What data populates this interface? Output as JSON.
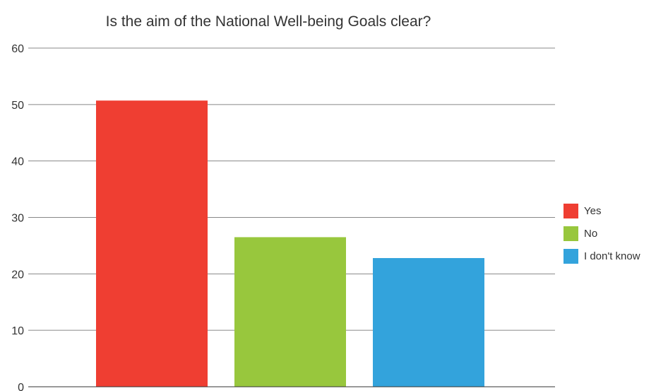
{
  "chart_data": {
    "type": "bar",
    "title": "Is the aim of the National Well-being Goals clear?",
    "xlabel": "",
    "ylabel": "",
    "ylim": [
      0,
      60
    ],
    "yticks": [
      0,
      10,
      20,
      30,
      40,
      50,
      60
    ],
    "grid": true,
    "legend_position": "right",
    "series": [
      {
        "name": "Yes",
        "value": 50.7,
        "color": "#ef3e32"
      },
      {
        "name": "No",
        "value": 26.5,
        "color": "#98c73d"
      },
      {
        "name": "I don't know",
        "value": 22.8,
        "color": "#33a3dc"
      }
    ]
  }
}
